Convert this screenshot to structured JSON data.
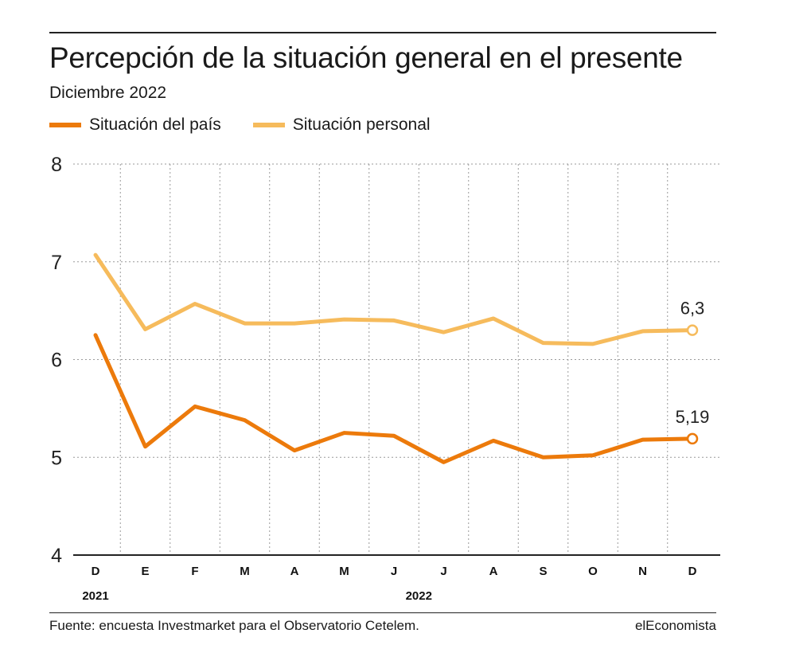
{
  "header": {
    "title": "Percepción de la situación general en el presente",
    "subtitle": "Diciembre 2022"
  },
  "legend": [
    {
      "label": "Situación del país",
      "color": "#ec7a0b"
    },
    {
      "label": "Situación personal",
      "color": "#f6bb5c"
    }
  ],
  "chart_data": {
    "type": "line",
    "categories": [
      "D",
      "E",
      "F",
      "M",
      "A",
      "M",
      "J",
      "J",
      "A",
      "S",
      "O",
      "N",
      "D"
    ],
    "year_labels": [
      {
        "text": "2021",
        "category_index": 0
      },
      {
        "text": "2022",
        "category_index": 6.5
      }
    ],
    "ylim": [
      4,
      8
    ],
    "yticks": [
      4,
      5,
      6,
      7,
      8
    ],
    "grid": true,
    "legend_position": "top-left",
    "series": [
      {
        "name": "Situación del país",
        "color": "#ec7a0b",
        "values": [
          6.25,
          5.11,
          5.52,
          5.38,
          5.07,
          5.25,
          5.22,
          4.95,
          5.17,
          5.0,
          5.02,
          5.18,
          5.19
        ],
        "end_label": "5,19"
      },
      {
        "name": "Situación personal",
        "color": "#f6bb5c",
        "values": [
          7.07,
          6.31,
          6.57,
          6.37,
          6.37,
          6.41,
          6.4,
          6.28,
          6.42,
          6.17,
          6.16,
          6.29,
          6.3
        ],
        "end_label": "6,3"
      }
    ]
  },
  "footer": {
    "source": "Fuente: encuesta Investmarket para el Observatorio Cetelem.",
    "brand": "elEconomista"
  }
}
